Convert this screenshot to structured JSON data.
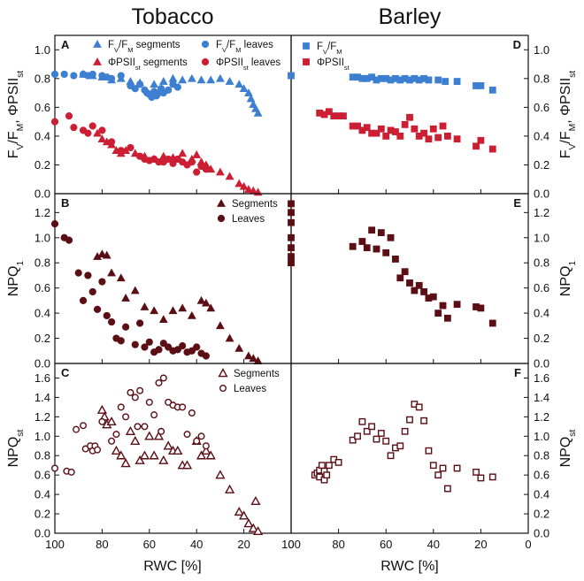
{
  "figure": {
    "left_title": "Tobacco",
    "right_title": "Barley",
    "xlabel": "RWC [%]",
    "xticks": [
      "100",
      "80",
      "60",
      "40",
      "20",
      "0"
    ]
  },
  "colors": {
    "fvfm": "#3d7fd0",
    "phi": "#cc1f33",
    "dark": "#5b0e14"
  },
  "chart_data": [
    {
      "id": "A",
      "type": "scatter",
      "ylabel_left": "FV/FM, ΦPSIIst",
      "ylim": [
        0,
        1.1
      ],
      "yticks": [
        0.0,
        0.2,
        0.4,
        0.6,
        0.8,
        1.0
      ],
      "legend": [
        "FV/FM segments",
        "ΦPSIIst segments",
        "FV/FM leaves",
        "ΦPSIIst leaves"
      ],
      "series": [
        {
          "name": "FV/FM segments",
          "marker": "triangle",
          "color": "fvfm",
          "x": [
            88,
            84,
            80,
            76,
            72,
            68,
            64,
            58,
            54,
            50,
            46,
            42,
            38,
            34,
            30,
            26,
            22,
            20,
            18,
            17,
            16,
            15,
            14
          ],
          "y": [
            0.83,
            0.82,
            0.81,
            0.79,
            0.8,
            0.78,
            0.77,
            0.76,
            0.78,
            0.8,
            0.79,
            0.8,
            0.79,
            0.79,
            0.8,
            0.78,
            0.76,
            0.73,
            0.7,
            0.66,
            0.62,
            0.59,
            0.56
          ]
        },
        {
          "name": "FV/FM leaves",
          "marker": "circle",
          "color": "fvfm",
          "x": [
            100,
            96,
            92,
            88,
            86,
            84,
            80,
            78,
            76,
            72,
            68,
            66,
            64,
            62,
            61,
            60,
            59,
            58,
            57,
            56,
            55,
            54,
            52,
            50,
            48
          ],
          "y": [
            0.83,
            0.83,
            0.82,
            0.83,
            0.82,
            0.83,
            0.82,
            0.81,
            0.8,
            0.82,
            0.75,
            0.73,
            0.76,
            0.72,
            0.7,
            0.69,
            0.67,
            0.71,
            0.68,
            0.7,
            0.73,
            0.7,
            0.72,
            0.76,
            0.74
          ]
        },
        {
          "name": "ΦPSIIst segments",
          "marker": "triangle",
          "color": "phi",
          "x": [
            82,
            80,
            78,
            76,
            74,
            72,
            70,
            66,
            62,
            58,
            54,
            50,
            46,
            42,
            40,
            38,
            36,
            34,
            30,
            26,
            22,
            20,
            18,
            16,
            14
          ],
          "y": [
            0.42,
            0.38,
            0.36,
            0.34,
            0.3,
            0.28,
            0.3,
            0.28,
            0.26,
            0.24,
            0.26,
            0.25,
            0.28,
            0.24,
            0.27,
            0.22,
            0.2,
            0.17,
            0.15,
            0.12,
            0.07,
            0.05,
            0.03,
            0.02,
            0.01
          ]
        },
        {
          "name": "ΦPSIIst leaves",
          "marker": "circle",
          "color": "phi",
          "x": [
            100,
            94,
            92,
            88,
            86,
            84,
            80,
            76,
            72,
            68,
            64,
            62,
            60,
            58,
            56,
            54,
            52,
            50,
            48,
            46,
            44,
            42,
            40,
            38,
            36
          ],
          "y": [
            0.5,
            0.54,
            0.46,
            0.44,
            0.42,
            0.47,
            0.44,
            0.36,
            0.3,
            0.32,
            0.26,
            0.24,
            0.23,
            0.24,
            0.22,
            0.22,
            0.24,
            0.21,
            0.24,
            0.22,
            0.2,
            0.22,
            0.15,
            0.19,
            0.17
          ]
        }
      ]
    },
    {
      "id": "D",
      "type": "scatter",
      "ylabel_right": "FV/FM, ΦPSIIst",
      "ylim": [
        0,
        1.1
      ],
      "yticks": [
        0.0,
        0.2,
        0.4,
        0.6,
        0.8,
        1.0
      ],
      "legend": [
        "FV/FM",
        "ΦPSIIst"
      ],
      "series": [
        {
          "name": "FV/FM",
          "marker": "square",
          "color": "fvfm",
          "x": [
            100,
            74,
            72,
            70,
            68,
            66,
            64,
            62,
            60,
            58,
            56,
            54,
            52,
            50,
            48,
            46,
            44,
            42,
            38,
            35,
            30,
            22,
            20,
            15
          ],
          "y": [
            0.82,
            0.81,
            0.81,
            0.8,
            0.8,
            0.81,
            0.79,
            0.8,
            0.8,
            0.79,
            0.8,
            0.79,
            0.8,
            0.79,
            0.8,
            0.79,
            0.8,
            0.79,
            0.79,
            0.78,
            0.78,
            0.75,
            0.75,
            0.72
          ]
        },
        {
          "name": "ΦPSIIst",
          "marker": "square",
          "color": "phi",
          "x": [
            88,
            86,
            84,
            82,
            80,
            78,
            74,
            72,
            70,
            68,
            66,
            64,
            62,
            60,
            58,
            56,
            54,
            52,
            50,
            48,
            46,
            44,
            42,
            40,
            38,
            36,
            34,
            30,
            22,
            20,
            15
          ],
          "y": [
            0.56,
            0.55,
            0.57,
            0.54,
            0.54,
            0.54,
            0.47,
            0.47,
            0.44,
            0.46,
            0.42,
            0.42,
            0.45,
            0.4,
            0.44,
            0.43,
            0.4,
            0.48,
            0.53,
            0.45,
            0.4,
            0.42,
            0.38,
            0.45,
            0.39,
            0.47,
            0.4,
            0.38,
            0.33,
            0.37,
            0.31
          ]
        }
      ]
    },
    {
      "id": "B",
      "type": "scatter",
      "ylabel_left": "NPQ1",
      "ylim": [
        0,
        1.35
      ],
      "yticks": [
        0.0,
        0.2,
        0.4,
        0.6,
        0.8,
        1.0,
        1.2
      ],
      "legend": [
        "Segments",
        "Leaves"
      ],
      "series": [
        {
          "name": "Segments",
          "marker": "triangle",
          "color": "dark",
          "x": [
            82,
            80,
            78,
            76,
            72,
            70,
            66,
            62,
            58,
            54,
            50,
            46,
            42,
            38,
            36,
            34,
            30,
            26,
            22,
            18,
            16,
            14
          ],
          "y": [
            0.85,
            0.87,
            0.86,
            0.72,
            0.68,
            0.52,
            0.58,
            0.45,
            0.42,
            0.35,
            0.42,
            0.44,
            0.38,
            0.5,
            0.48,
            0.44,
            0.3,
            0.2,
            0.12,
            0.06,
            0.04,
            0.02
          ]
        },
        {
          "name": "Leaves",
          "marker": "circle",
          "color": "dark",
          "x": [
            100,
            96,
            94,
            90,
            88,
            86,
            84,
            82,
            80,
            78,
            76,
            74,
            72,
            70,
            66,
            64,
            62,
            60,
            58,
            56,
            54,
            52,
            50,
            48,
            46,
            44,
            42,
            40,
            38,
            36
          ],
          "y": [
            1.11,
            1.0,
            0.98,
            0.72,
            0.5,
            0.7,
            0.57,
            0.43,
            0.65,
            0.38,
            0.33,
            0.2,
            0.18,
            0.29,
            0.15,
            0.32,
            0.13,
            0.17,
            0.09,
            0.11,
            0.16,
            0.13,
            0.1,
            0.11,
            0.14,
            0.09,
            0.1,
            0.13,
            0.08,
            0.06
          ]
        }
      ]
    },
    {
      "id": "E",
      "type": "scatter",
      "ylabel_right": "NPQ1",
      "ylim": [
        0,
        1.35
      ],
      "yticks": [
        0.0,
        0.2,
        0.4,
        0.6,
        0.8,
        1.0,
        1.2
      ],
      "series": [
        {
          "name": "Barley",
          "marker": "square",
          "color": "dark",
          "x": [
            100,
            100,
            100,
            100,
            100,
            100,
            100,
            74,
            70,
            68,
            66,
            64,
            62,
            60,
            58,
            56,
            54,
            52,
            50,
            48,
            46,
            44,
            42,
            40,
            38,
            36,
            34,
            30,
            22,
            20,
            15
          ],
          "y": [
            1.27,
            1.2,
            1.12,
            1.0,
            0.92,
            0.85,
            0.8,
            0.93,
            0.97,
            0.92,
            1.06,
            0.91,
            1.04,
            0.88,
            1.0,
            0.83,
            0.68,
            0.73,
            0.64,
            0.58,
            0.62,
            0.57,
            0.52,
            0.53,
            0.4,
            0.46,
            0.36,
            0.47,
            0.45,
            0.44,
            0.32
          ]
        }
      ]
    },
    {
      "id": "C",
      "type": "scatter",
      "ylabel_left": "NPQst",
      "ylim": [
        0,
        1.75
      ],
      "yticks": [
        0.0,
        0.2,
        0.4,
        0.6,
        0.8,
        1.0,
        1.2,
        1.4,
        1.6
      ],
      "legend": [
        "Segments",
        "Leaves"
      ],
      "series": [
        {
          "name": "Segments",
          "marker": "triangle-open",
          "color": "dark",
          "x": [
            80,
            79,
            78,
            76,
            74,
            72,
            70,
            68,
            66,
            64,
            62,
            60,
            58,
            56,
            54,
            52,
            50,
            48,
            46,
            44,
            40,
            38,
            36,
            34,
            30,
            26,
            22,
            20,
            18,
            16,
            15,
            14
          ],
          "y": [
            1.27,
            1.2,
            1.12,
            1.15,
            0.85,
            0.8,
            0.72,
            1.05,
            0.95,
            0.75,
            0.8,
            1.0,
            0.8,
            1.0,
            0.75,
            0.9,
            0.85,
            0.85,
            0.7,
            0.7,
            0.95,
            0.8,
            0.85,
            0.8,
            0.6,
            0.45,
            0.22,
            0.18,
            0.1,
            0.05,
            0.33,
            0.02
          ]
        },
        {
          "name": "Leaves",
          "marker": "circle-open",
          "color": "dark",
          "x": [
            100,
            95,
            93,
            91,
            88,
            87,
            85,
            84,
            83,
            82,
            80,
            76,
            74,
            72,
            70,
            68,
            66,
            65,
            64,
            62,
            60,
            58,
            56,
            55,
            54,
            52,
            50,
            48,
            46,
            44,
            42,
            40,
            38,
            36
          ],
          "y": [
            0.67,
            0.64,
            0.63,
            1.07,
            1.11,
            0.87,
            0.9,
            0.85,
            0.9,
            0.86,
            1.15,
            0.95,
            1.02,
            1.3,
            1.2,
            1.45,
            1.4,
            1.1,
            1.47,
            1.1,
            1.35,
            1.22,
            1.55,
            1.05,
            1.6,
            1.35,
            1.32,
            1.3,
            1.3,
            1.02,
            1.24,
            0.95,
            1.0,
            0.9
          ]
        }
      ]
    },
    {
      "id": "F",
      "type": "scatter",
      "ylabel_right": "NPQst",
      "ylim": [
        0,
        1.75
      ],
      "yticks": [
        0.0,
        0.2,
        0.4,
        0.6,
        0.8,
        1.0,
        1.2,
        1.4,
        1.6
      ],
      "series": [
        {
          "name": "Barley",
          "marker": "square-open",
          "color": "dark",
          "x": [
            90,
            89,
            88,
            88,
            87,
            86,
            86,
            85,
            84,
            82,
            80,
            74,
            72,
            70,
            68,
            66,
            64,
            62,
            60,
            58,
            56,
            54,
            52,
            50,
            48,
            46,
            44,
            42,
            40,
            38,
            36,
            34,
            30,
            22,
            20,
            15
          ],
          "y": [
            0.6,
            0.62,
            0.65,
            0.58,
            0.7,
            0.55,
            0.64,
            0.6,
            0.7,
            0.76,
            0.73,
            0.96,
            1.0,
            1.15,
            1.05,
            1.1,
            0.97,
            1.03,
            0.95,
            0.8,
            0.88,
            0.9,
            1.05,
            1.17,
            1.33,
            1.3,
            1.16,
            0.85,
            0.7,
            0.6,
            0.67,
            0.46,
            0.67,
            0.63,
            0.57,
            0.58
          ]
        }
      ]
    }
  ]
}
